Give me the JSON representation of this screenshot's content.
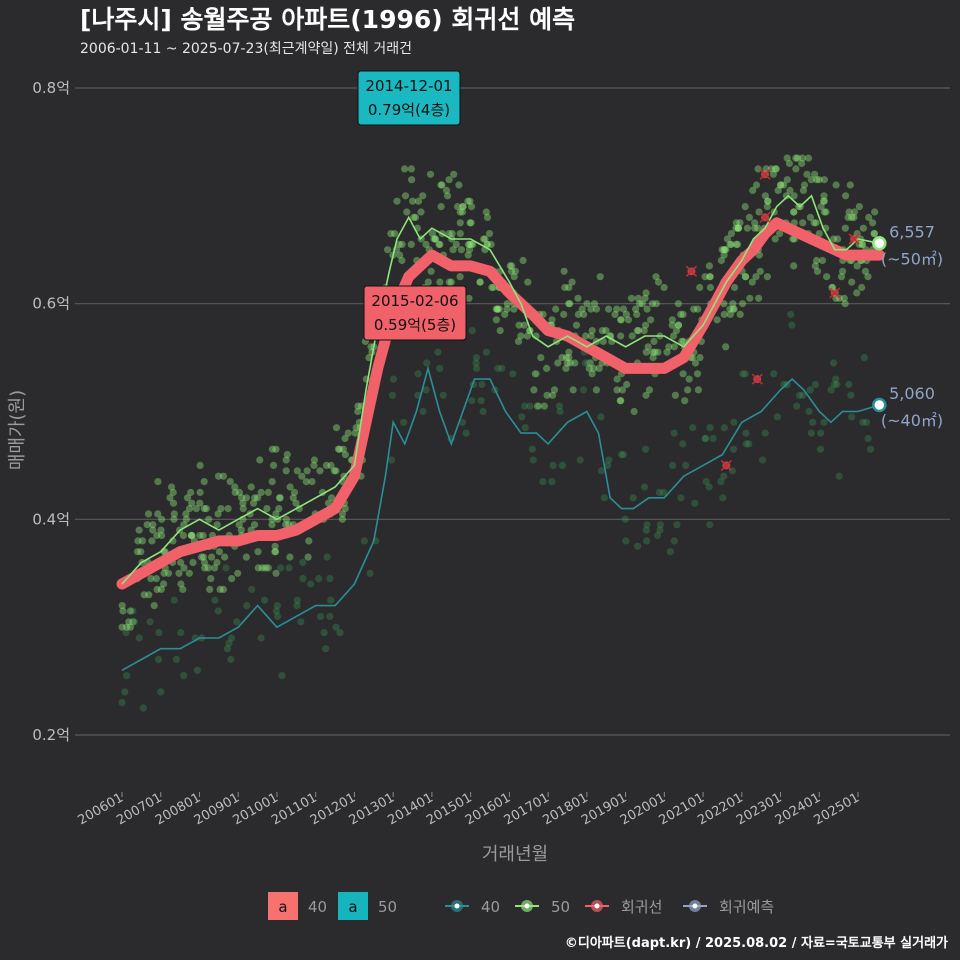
{
  "title": "[나주시] 송월주공 아파트(1996) 회귀선 예측",
  "subtitle": "2006-01-11 ~ 2025-07-23(최근계약일) 전체 거래건",
  "caption": "©디아파트(dapt.kr) / 2025.08.02 / 자료=국토교통부 실거래가",
  "chart_data": {
    "type": "scatter",
    "xlabel": "거래년월",
    "ylabel": "매매가(원)",
    "x_range": [
      "2005-07",
      "2025-12"
    ],
    "ylim": [
      0.15,
      0.82
    ],
    "y_ticks": [
      {
        "value": 0.2,
        "label": "0.2억"
      },
      {
        "value": 0.4,
        "label": "0.4억"
      },
      {
        "value": 0.6,
        "label": "0.6억"
      },
      {
        "value": 0.8,
        "label": "0.8억"
      }
    ],
    "x_tick_labels": [
      "200601",
      "200701",
      "200801",
      "200901",
      "201001",
      "201101",
      "201201",
      "201301",
      "201401",
      "201501",
      "201601",
      "201701",
      "201801",
      "201901",
      "202001",
      "202101",
      "202201",
      "202301",
      "202401",
      "202501"
    ],
    "grid": true,
    "series": [
      {
        "name": "40",
        "kind": "line",
        "color": "#2a8f96",
        "x": [
          2006.0,
          2006.5,
          2007.0,
          2007.5,
          2008.0,
          2008.5,
          2009.0,
          2009.5,
          2010.0,
          2010.5,
          2011.0,
          2011.5,
          2012.0,
          2012.5,
          2012.8,
          2013.0,
          2013.3,
          2013.6,
          2013.9,
          2014.2,
          2014.5,
          2014.8,
          2015.1,
          2015.5,
          2015.9,
          2016.3,
          2016.7,
          2017.0,
          2017.5,
          2018.0,
          2018.3,
          2018.6,
          2018.9,
          2019.2,
          2019.6,
          2020.0,
          2020.5,
          2021.0,
          2021.5,
          2022.0,
          2022.5,
          2023.0,
          2023.3,
          2023.6,
          2024.0,
          2024.3,
          2024.6,
          2025.0,
          2025.55
        ],
        "y": [
          0.26,
          0.27,
          0.28,
          0.28,
          0.29,
          0.29,
          0.3,
          0.32,
          0.3,
          0.31,
          0.32,
          0.32,
          0.34,
          0.38,
          0.44,
          0.49,
          0.47,
          0.5,
          0.54,
          0.5,
          0.47,
          0.5,
          0.53,
          0.53,
          0.5,
          0.48,
          0.48,
          0.47,
          0.49,
          0.5,
          0.48,
          0.42,
          0.41,
          0.41,
          0.42,
          0.42,
          0.44,
          0.45,
          0.46,
          0.49,
          0.5,
          0.52,
          0.53,
          0.52,
          0.5,
          0.49,
          0.5,
          0.5,
          0.506
        ]
      },
      {
        "name": "50",
        "kind": "line",
        "color": "#8ee67a",
        "x": [
          2006.0,
          2006.5,
          2007.0,
          2007.5,
          2008.0,
          2008.5,
          2009.0,
          2009.5,
          2010.0,
          2010.5,
          2011.0,
          2011.5,
          2012.0,
          2012.3,
          2012.6,
          2012.9,
          2013.1,
          2013.4,
          2013.7,
          2014.0,
          2014.5,
          2015.0,
          2015.5,
          2016.0,
          2016.3,
          2016.6,
          2017.0,
          2017.5,
          2018.0,
          2018.5,
          2019.0,
          2019.5,
          2020.0,
          2020.5,
          2021.0,
          2021.3,
          2021.6,
          2022.0,
          2022.3,
          2022.6,
          2022.9,
          2023.2,
          2023.5,
          2023.8,
          2024.1,
          2024.4,
          2024.7,
          2025.0,
          2025.55
        ],
        "y": [
          0.34,
          0.36,
          0.37,
          0.39,
          0.4,
          0.39,
          0.4,
          0.41,
          0.4,
          0.41,
          0.42,
          0.43,
          0.45,
          0.52,
          0.58,
          0.63,
          0.66,
          0.68,
          0.66,
          0.67,
          0.66,
          0.66,
          0.65,
          0.62,
          0.6,
          0.57,
          0.56,
          0.57,
          0.56,
          0.57,
          0.56,
          0.57,
          0.57,
          0.56,
          0.58,
          0.6,
          0.62,
          0.64,
          0.66,
          0.67,
          0.69,
          0.7,
          0.69,
          0.7,
          0.67,
          0.65,
          0.65,
          0.66,
          0.656
        ]
      },
      {
        "name": "회귀선",
        "kind": "regression",
        "color": "#f0616a",
        "x": [
          2006.0,
          2006.5,
          2007.0,
          2007.5,
          2008.0,
          2008.5,
          2009.0,
          2009.5,
          2010.0,
          2010.5,
          2011.0,
          2011.5,
          2012.0,
          2012.3,
          2012.6,
          2012.9,
          2013.1,
          2013.4,
          2013.7,
          2014.0,
          2014.5,
          2015.0,
          2015.5,
          2016.0,
          2016.3,
          2016.6,
          2017.0,
          2017.5,
          2018.0,
          2018.5,
          2019.0,
          2019.5,
          2020.0,
          2020.5,
          2021.0,
          2021.3,
          2021.6,
          2022.0,
          2022.3,
          2022.6,
          2022.9,
          2023.2,
          2023.5,
          2023.8,
          2024.1,
          2024.4,
          2024.7,
          2025.0,
          2025.55
        ],
        "y": [
          0.34,
          0.35,
          0.36,
          0.37,
          0.375,
          0.38,
          0.38,
          0.385,
          0.385,
          0.39,
          0.4,
          0.41,
          0.44,
          0.49,
          0.54,
          0.58,
          0.6,
          0.625,
          0.635,
          0.645,
          0.635,
          0.635,
          0.63,
          0.61,
          0.6,
          0.59,
          0.575,
          0.57,
          0.56,
          0.55,
          0.54,
          0.54,
          0.54,
          0.55,
          0.58,
          0.6,
          0.62,
          0.64,
          0.65,
          0.665,
          0.675,
          0.67,
          0.665,
          0.66,
          0.655,
          0.65,
          0.645,
          0.645,
          0.645
        ]
      },
      {
        "name": "회귀예측",
        "kind": "legend-only",
        "color": "#8fa5c9"
      }
    ],
    "bar_legend": [
      {
        "key": "a",
        "label": "40",
        "color": "#f7726f"
      },
      {
        "key": "a",
        "label": "50",
        "color": "#16b5bd"
      }
    ],
    "annotations": [
      {
        "date": "2014-12-01",
        "text": "0.79억(4층)",
        "color": "#1ab8c0",
        "x": 2014.9,
        "y": 0.79
      },
      {
        "date": "2015-02-06",
        "text": "0.59억(5층)",
        "color": "#f0616a",
        "x": 2015.1,
        "y": 0.59
      }
    ],
    "end_labels": [
      {
        "value": "6,557",
        "area": "(~50㎡)",
        "x": 2025.55,
        "y": 0.656,
        "ring": "#8ee67a"
      },
      {
        "value": "5,060",
        "area": "(~40㎡)",
        "x": 2025.55,
        "y": 0.506,
        "ring": "#2a8f96"
      }
    ],
    "outliers": [
      {
        "x": 2020.7,
        "y": 0.63
      },
      {
        "x": 2021.6,
        "y": 0.45
      },
      {
        "x": 2022.4,
        "y": 0.53
      },
      {
        "x": 2022.6,
        "y": 0.68
      },
      {
        "x": 2022.6,
        "y": 0.72
      },
      {
        "x": 2024.4,
        "y": 0.61
      },
      {
        "x": 2024.9,
        "y": 0.66
      }
    ]
  }
}
